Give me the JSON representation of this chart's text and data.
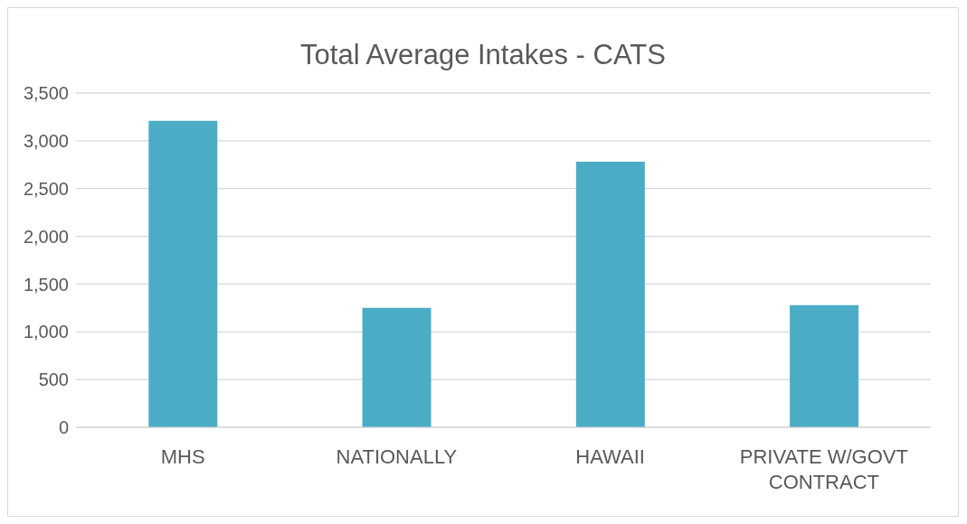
{
  "chart_data": {
    "type": "bar",
    "title": "Total Average Intakes - CATS",
    "categories": [
      "MHS",
      "NATIONALLY",
      "HAWAII",
      "PRIVATE W/GOVT CONTRACT"
    ],
    "values": [
      3210,
      1250,
      2780,
      1280
    ],
    "color": "#4bacc6",
    "ylim": [
      0,
      3500
    ],
    "yticks": [
      0,
      500,
      {
        "value": 1000,
        "label": "1,000"
      },
      {
        "value": 1500,
        "label": "1,500"
      },
      {
        "value": 2000,
        "label": "2,000"
      },
      {
        "value": 2500,
        "label": "2,500"
      },
      {
        "value": 3000,
        "label": "3,000"
      },
      {
        "value": 3500,
        "label": "3,500"
      }
    ],
    "grid": "y"
  }
}
